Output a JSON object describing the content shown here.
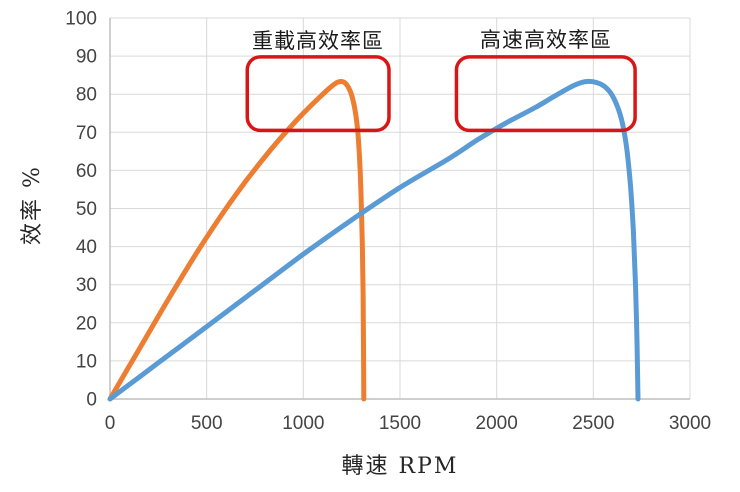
{
  "colors": {
    "orange_series": "#ED7D31",
    "blue_series": "#5B9BD5",
    "annotation_red": "#D91616",
    "gridline": "#D9D9D9",
    "axis_line": "#BFBFBF",
    "tick_text": "#444444",
    "label_text": "#262626"
  },
  "chart_data": {
    "type": "line",
    "title": "",
    "xlabel": "轉速 RPM",
    "ylabel": "效率 %",
    "xlim": [
      0,
      3000
    ],
    "ylim": [
      0,
      100
    ],
    "x_ticks": [
      0,
      500,
      1000,
      1500,
      2000,
      2500,
      3000
    ],
    "y_ticks": [
      0,
      10,
      20,
      30,
      40,
      50,
      60,
      70,
      80,
      90,
      100
    ],
    "grid": true,
    "legend_position": "none",
    "series": [
      {
        "name": "orange",
        "color": "#ED7D31",
        "peak": {
          "x": 1180,
          "y": 83
        },
        "x": [
          0,
          150,
          300,
          450,
          600,
          700,
          800,
          900,
          1000,
          1080,
          1140,
          1180,
          1215,
          1245,
          1265,
          1280,
          1291,
          1299,
          1305,
          1309,
          1311,
          1313
        ],
        "y": [
          0,
          13,
          26,
          38.5,
          50,
          57,
          63.5,
          69.5,
          75,
          79,
          81.8,
          83.2,
          83,
          80.5,
          76.5,
          71,
          63,
          53,
          41,
          28,
          14,
          0
        ]
      },
      {
        "name": "blue",
        "color": "#5B9BD5",
        "peak": {
          "x": 2460,
          "y": 83
        },
        "x": [
          0,
          250,
          500,
          750,
          1000,
          1250,
          1500,
          1750,
          1900,
          2050,
          2200,
          2300,
          2400,
          2460,
          2520,
          2570,
          2610,
          2645,
          2672,
          2692,
          2707,
          2718,
          2726,
          2731
        ],
        "y": [
          0,
          9.5,
          19,
          28.5,
          38,
          47,
          55.5,
          63,
          68,
          72.5,
          76.5,
          79.5,
          82.3,
          83.3,
          83,
          81.5,
          78.5,
          73.5,
          66,
          56,
          44,
          30,
          15,
          0
        ]
      }
    ],
    "annotations": [
      {
        "label": "重載高效率區",
        "x_range": [
          710,
          1443
        ],
        "y_range": [
          70.5,
          89.8
        ]
      },
      {
        "label": "高速高效率區",
        "x_range": [
          1792,
          2716
        ],
        "y_range": [
          70.5,
          89.8
        ]
      }
    ]
  }
}
